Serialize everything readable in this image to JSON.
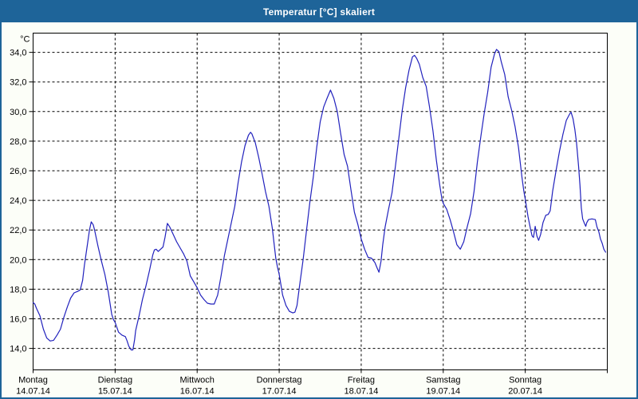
{
  "window": {
    "title": "Temperatur [°C] skaliert"
  },
  "colors": {
    "titlebar": "#1e6499",
    "frame": "#1e6499",
    "background": "#fcfef8",
    "plot_bg": "#ffffff",
    "axis": "#000000",
    "line": "#2121bd"
  },
  "chart_data": {
    "type": "line",
    "title": "Temperatur [°C] skaliert",
    "y_unit_label": "°C",
    "grid": "dashed",
    "legend": "none",
    "ylim": [
      12.55,
      35.3
    ],
    "x_total_hours": 168,
    "y_ticks": [
      {
        "value": 34,
        "label": "34,0"
      },
      {
        "value": 32,
        "label": "32,0"
      },
      {
        "value": 30,
        "label": "30,0"
      },
      {
        "value": 28,
        "label": "28,0"
      },
      {
        "value": 26,
        "label": "26,0"
      },
      {
        "value": 24,
        "label": "24,0"
      },
      {
        "value": 22,
        "label": "22,0"
      },
      {
        "value": 20,
        "label": "20,0"
      },
      {
        "value": 18,
        "label": "18,0"
      },
      {
        "value": 16,
        "label": "16,0"
      },
      {
        "value": 14,
        "label": "14,0"
      }
    ],
    "x_days": [
      {
        "name": "Montag",
        "date": "14.07.14"
      },
      {
        "name": "Dienstag",
        "date": "15.07.14"
      },
      {
        "name": "Mittwoch",
        "date": "16.07.14"
      },
      {
        "name": "Donnerstag",
        "date": "17.07.14"
      },
      {
        "name": "Freitag",
        "date": "18.07.14"
      },
      {
        "name": "Samstag",
        "date": "19.07.14"
      },
      {
        "name": "Sonntag",
        "date": "20.07.14"
      }
    ],
    "series": [
      {
        "name": "Temperatur",
        "color": "#2121bd",
        "points": [
          [
            0,
            17.1
          ],
          [
            0.5,
            17.0
          ],
          [
            1,
            16.7
          ],
          [
            2,
            16.2
          ],
          [
            3,
            15.3
          ],
          [
            4,
            14.7
          ],
          [
            5,
            14.5
          ],
          [
            6,
            14.55
          ],
          [
            7,
            14.9
          ],
          [
            8,
            15.3
          ],
          [
            9,
            16.1
          ],
          [
            10,
            16.8
          ],
          [
            11,
            17.4
          ],
          [
            12,
            17.75
          ],
          [
            13,
            17.85
          ],
          [
            13.8,
            17.95
          ],
          [
            14.5,
            18.6
          ],
          [
            15,
            19.6
          ],
          [
            16,
            21.2
          ],
          [
            16.5,
            22.0
          ],
          [
            17,
            22.55
          ],
          [
            17.6,
            22.35
          ],
          [
            18,
            22.0
          ],
          [
            19,
            20.9
          ],
          [
            20,
            19.9
          ],
          [
            21,
            19.0
          ],
          [
            22,
            17.8
          ],
          [
            23,
            16.3
          ],
          [
            23.5,
            15.95
          ],
          [
            24,
            15.75
          ],
          [
            25,
            15.1
          ],
          [
            26,
            14.9
          ],
          [
            27,
            14.8
          ],
          [
            27.5,
            14.5
          ],
          [
            28,
            14.15
          ],
          [
            28.7,
            13.9
          ],
          [
            29.2,
            13.9
          ],
          [
            29.7,
            14.6
          ],
          [
            30,
            15.2
          ],
          [
            31,
            16.2
          ],
          [
            32,
            17.3
          ],
          [
            33,
            18.2
          ],
          [
            34,
            19.2
          ],
          [
            35,
            20.3
          ],
          [
            35.5,
            20.65
          ],
          [
            36,
            20.7
          ],
          [
            36.6,
            20.55
          ],
          [
            37.3,
            20.7
          ],
          [
            38,
            20.85
          ],
          [
            38.6,
            21.5
          ],
          [
            39.3,
            22.45
          ],
          [
            40,
            22.2
          ],
          [
            41,
            21.7
          ],
          [
            42,
            21.2
          ],
          [
            43,
            20.8
          ],
          [
            44,
            20.4
          ],
          [
            45,
            19.9
          ],
          [
            46,
            18.9
          ],
          [
            47,
            18.5
          ],
          [
            48,
            18.1
          ],
          [
            49,
            17.6
          ],
          [
            50,
            17.3
          ],
          [
            51,
            17.05
          ],
          [
            52,
            17.0
          ],
          [
            53,
            17.0
          ],
          [
            54,
            17.6
          ],
          [
            55,
            18.9
          ],
          [
            56,
            20.3
          ],
          [
            57,
            21.4
          ],
          [
            58,
            22.5
          ],
          [
            59,
            23.6
          ],
          [
            60,
            25.2
          ],
          [
            61,
            26.6
          ],
          [
            62,
            27.7
          ],
          [
            63,
            28.4
          ],
          [
            63.6,
            28.6
          ],
          [
            64,
            28.5
          ],
          [
            65,
            27.9
          ],
          [
            66,
            26.9
          ],
          [
            67,
            25.8
          ],
          [
            68,
            24.6
          ],
          [
            69,
            23.6
          ],
          [
            70,
            22.1
          ],
          [
            71,
            20.1
          ],
          [
            71.5,
            19.5
          ],
          [
            72,
            19.0
          ],
          [
            73,
            17.6
          ],
          [
            74,
            16.9
          ],
          [
            75,
            16.5
          ],
          [
            76,
            16.4
          ],
          [
            76.6,
            16.45
          ],
          [
            77.2,
            16.9
          ],
          [
            78,
            18.3
          ],
          [
            79,
            20.0
          ],
          [
            80,
            22.0
          ],
          [
            81,
            23.9
          ],
          [
            82,
            25.6
          ],
          [
            83,
            27.6
          ],
          [
            84,
            29.3
          ],
          [
            85,
            30.3
          ],
          [
            86,
            30.9
          ],
          [
            87,
            31.45
          ],
          [
            88,
            30.9
          ],
          [
            89,
            30.0
          ],
          [
            90,
            28.5
          ],
          [
            91,
            27.1
          ],
          [
            92,
            26.3
          ],
          [
            93,
            24.7
          ],
          [
            94,
            23.2
          ],
          [
            95,
            22.4
          ],
          [
            96,
            21.4
          ],
          [
            97,
            20.7
          ],
          [
            98,
            20.15
          ],
          [
            99,
            20.1
          ],
          [
            100,
            19.8
          ],
          [
            100.7,
            19.4
          ],
          [
            101.2,
            19.15
          ],
          [
            101.8,
            19.9
          ],
          [
            102.3,
            21.0
          ],
          [
            103,
            22.2
          ],
          [
            104,
            23.4
          ],
          [
            105,
            24.5
          ],
          [
            106,
            26.3
          ],
          [
            107,
            28.2
          ],
          [
            108,
            30.1
          ],
          [
            109,
            31.6
          ],
          [
            110,
            32.8
          ],
          [
            111,
            33.7
          ],
          [
            111.6,
            33.8
          ],
          [
            112.2,
            33.6
          ],
          [
            113,
            33.2
          ],
          [
            114,
            32.3
          ],
          [
            115,
            31.7
          ],
          [
            116,
            30.3
          ],
          [
            117,
            28.7
          ],
          [
            118,
            26.7
          ],
          [
            119,
            25.0
          ],
          [
            119.6,
            24.1
          ],
          [
            120,
            23.8
          ],
          [
            121,
            23.4
          ],
          [
            122,
            22.7
          ],
          [
            123,
            21.9
          ],
          [
            124,
            21.0
          ],
          [
            125,
            20.7
          ],
          [
            126,
            21.2
          ],
          [
            127,
            22.2
          ],
          [
            128,
            23.1
          ],
          [
            129,
            24.6
          ],
          [
            130,
            26.6
          ],
          [
            131,
            28.3
          ],
          [
            132,
            29.9
          ],
          [
            133,
            31.3
          ],
          [
            134,
            33.0
          ],
          [
            135,
            33.9
          ],
          [
            135.6,
            34.2
          ],
          [
            136.3,
            34.05
          ],
          [
            137,
            33.35
          ],
          [
            138,
            32.5
          ],
          [
            139,
            31.0
          ],
          [
            140,
            30.1
          ],
          [
            141,
            29.0
          ],
          [
            142,
            27.6
          ],
          [
            143,
            25.6
          ],
          [
            143.6,
            24.6
          ],
          [
            144,
            24.1
          ],
          [
            144.8,
            22.9
          ],
          [
            145.5,
            22.1
          ],
          [
            146,
            21.6
          ],
          [
            146.4,
            21.5
          ],
          [
            146.9,
            22.25
          ],
          [
            147.4,
            21.6
          ],
          [
            147.9,
            21.3
          ],
          [
            148.5,
            21.7
          ],
          [
            149.2,
            22.5
          ],
          [
            150,
            23.0
          ],
          [
            150.7,
            23.05
          ],
          [
            151.3,
            23.3
          ],
          [
            152,
            24.6
          ],
          [
            153,
            26.0
          ],
          [
            154,
            27.3
          ],
          [
            155,
            28.45
          ],
          [
            156,
            29.4
          ],
          [
            157,
            29.85
          ],
          [
            157.4,
            29.95
          ],
          [
            158,
            29.5
          ],
          [
            158.5,
            28.8
          ],
          [
            159,
            27.9
          ],
          [
            159.6,
            26.3
          ],
          [
            160,
            25.05
          ],
          [
            160.4,
            23.5
          ],
          [
            160.8,
            22.75
          ],
          [
            161.3,
            22.45
          ],
          [
            161.7,
            22.25
          ],
          [
            162,
            22.5
          ],
          [
            162.5,
            22.7
          ],
          [
            163.5,
            22.75
          ],
          [
            164.5,
            22.7
          ],
          [
            165,
            22.2
          ],
          [
            165.5,
            21.9
          ],
          [
            166,
            21.4
          ],
          [
            166.5,
            21.1
          ],
          [
            167,
            20.7
          ],
          [
            167.5,
            20.5
          ]
        ]
      }
    ]
  }
}
